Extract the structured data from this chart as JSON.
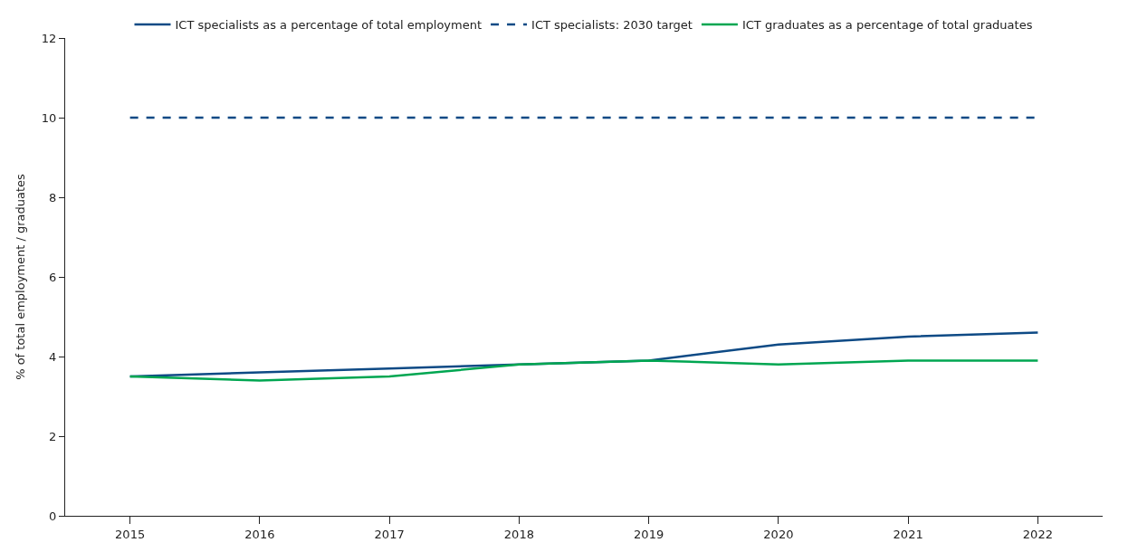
{
  "chart_data": {
    "type": "line",
    "ylabel": "% of total employment / graduates",
    "categories": [
      "2015",
      "2016",
      "2017",
      "2018",
      "2019",
      "2020",
      "2021",
      "2022"
    ],
    "series": [
      {
        "name": "ICT specialists as a percentage of total employment",
        "color": "#0e4a85",
        "values": [
          3.5,
          3.6,
          3.7,
          3.8,
          3.9,
          4.3,
          4.5,
          4.6
        ]
      },
      {
        "name": "ICT specialists: 2030 target",
        "color": "#0e4a85",
        "line_style": "dashed",
        "values": [
          10,
          10,
          10,
          10,
          10,
          10,
          10,
          10
        ]
      },
      {
        "name": "ICT graduates as a percentage of total graduates",
        "color": "#00a651",
        "values": [
          3.5,
          3.4,
          3.5,
          3.8,
          3.9,
          3.8,
          3.9,
          3.9
        ]
      }
    ],
    "ylim": [
      0,
      12
    ],
    "yticks": [
      0,
      2,
      4,
      6,
      8,
      10,
      12
    ],
    "marker": "none",
    "legend": "top"
  }
}
